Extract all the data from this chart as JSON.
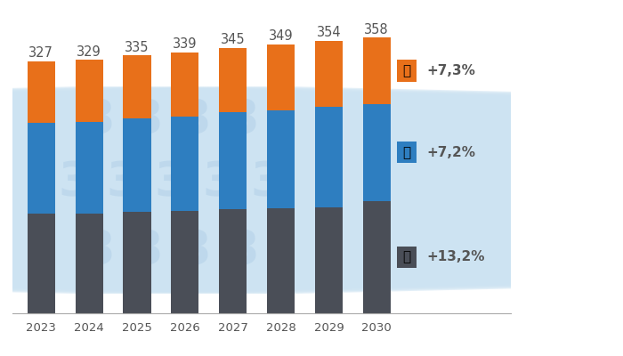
{
  "years": [
    2023,
    2024,
    2025,
    2026,
    2027,
    2028,
    2029,
    2030
  ],
  "totals": [
    327,
    329,
    335,
    339,
    345,
    349,
    354,
    358
  ],
  "chicken": [
    129,
    130,
    132,
    133,
    135,
    136,
    138,
    146
  ],
  "pork": [
    118,
    119,
    121,
    123,
    126,
    128,
    130,
    126
  ],
  "beef": [
    80,
    80,
    82,
    83,
    84,
    85,
    86,
    86
  ],
  "color_chicken": "#4a4e57",
  "color_pork": "#2e7ec0",
  "color_beef": "#e8701a",
  "label_chicken": "+13,2%",
  "label_pork": "+7,2%",
  "label_beef": "+7,3%",
  "background_color": "#ffffff",
  "watermark_color": "#cde3f2",
  "bar_width": 0.58,
  "ylim_max": 370,
  "total_fontsize": 10.5,
  "tick_fontsize": 9.5,
  "legend_fontsize": 11
}
